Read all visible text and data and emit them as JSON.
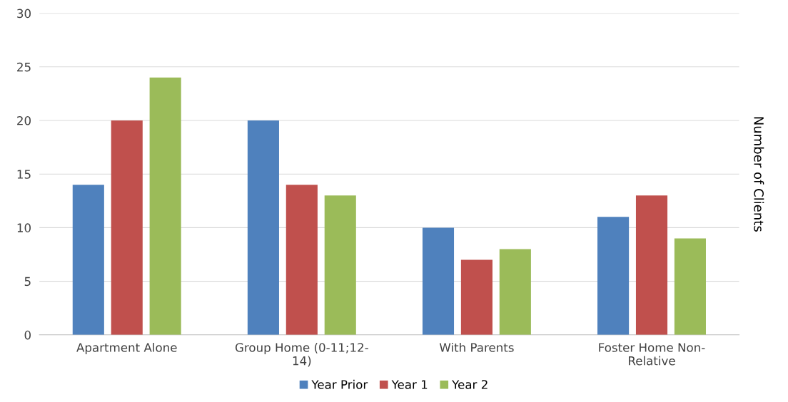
{
  "chart_data": {
    "type": "bar",
    "ylabel": "Number of Clients",
    "categories": [
      "Apartment Alone",
      "Group Home (0-11;12-\n14)",
      "With Parents",
      "Foster Home Non-\nRelative"
    ],
    "series": [
      {
        "name": "Year Prior",
        "color": "#4f81bd",
        "values": [
          14,
          20,
          10,
          11
        ]
      },
      {
        "name": "Year 1",
        "color": "#c0504d",
        "values": [
          20,
          14,
          7,
          13
        ]
      },
      {
        "name": "Year 2",
        "color": "#9bbb59",
        "values": [
          24,
          13,
          8,
          9
        ]
      }
    ],
    "ylim": [
      0,
      30
    ],
    "yticks": [
      0,
      5,
      10,
      15,
      20,
      25,
      30
    ],
    "grid": "y",
    "legend": "bottom"
  }
}
